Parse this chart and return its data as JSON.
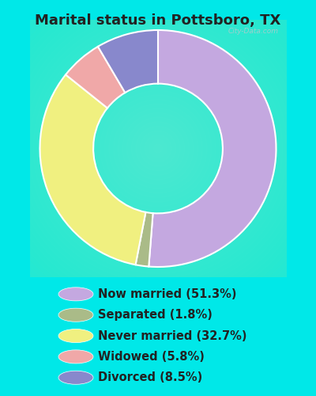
{
  "title": "Marital status in Pottsboro, TX",
  "slices": [
    {
      "label": "Now married (51.3%)",
      "value": 51.3,
      "color": "#c4a8e0"
    },
    {
      "label": "Separated (1.8%)",
      "value": 1.8,
      "color": "#aabb88"
    },
    {
      "label": "Never married (32.7%)",
      "value": 32.7,
      "color": "#f0f080"
    },
    {
      "label": "Widowed (5.8%)",
      "value": 5.8,
      "color": "#f0a8a8"
    },
    {
      "label": "Divorced (8.5%)",
      "value": 8.5,
      "color": "#8888cc"
    }
  ],
  "legend_colors": [
    "#c4a8e0",
    "#aabb88",
    "#f0f080",
    "#f0a8a8",
    "#8888cc"
  ],
  "legend_labels": [
    "Now married (51.3%)",
    "Separated (1.8%)",
    "Never married (32.7%)",
    "Widowed (5.8%)",
    "Divorced (8.5%)"
  ],
  "bg_outer": "#00e8e8",
  "title_fontsize": 13,
  "watermark": "City-Data.com"
}
